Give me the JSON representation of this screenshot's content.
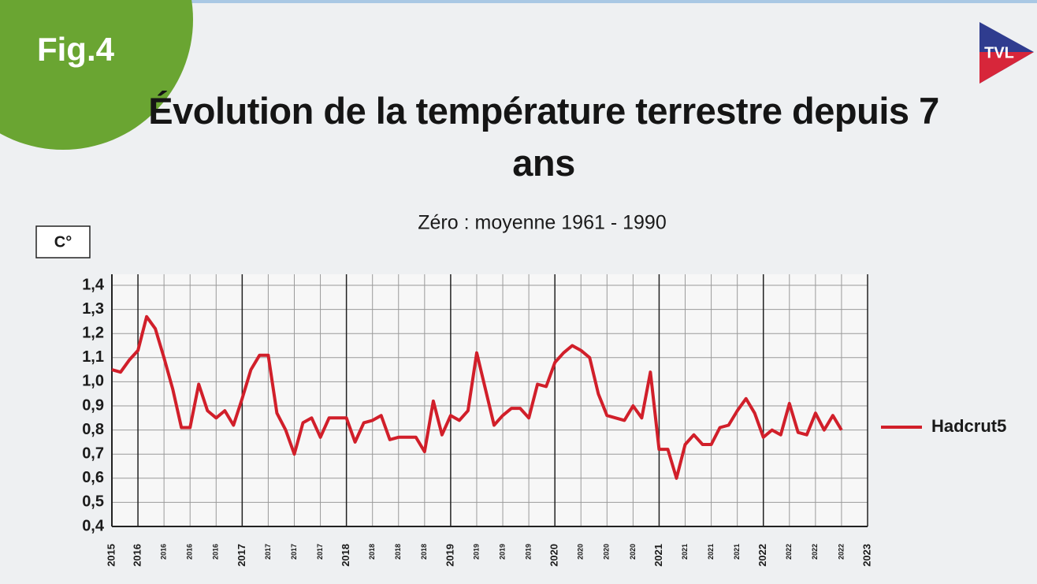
{
  "chart_data": {
    "type": "line",
    "badge": "Fig.4",
    "logo": "TVL",
    "title": "Évolution de la température terrestre depuis 7 ans",
    "subtitle": "Zéro : moyenne 1961 - 1990",
    "y_label": "C°",
    "xlim": [
      0,
      87
    ],
    "xticks": [
      {
        "value": 0,
        "label": "2015"
      },
      {
        "value": 3,
        "label": "2016"
      },
      {
        "value": 6,
        "label": "2016"
      },
      {
        "value": 9,
        "label": "2016"
      },
      {
        "value": 12,
        "label": "2016"
      },
      {
        "value": 15,
        "label": "2017"
      },
      {
        "value": 18,
        "label": "2017"
      },
      {
        "value": 21,
        "label": "2017"
      },
      {
        "value": 24,
        "label": "2017"
      },
      {
        "value": 27,
        "label": "2018"
      },
      {
        "value": 30,
        "label": "2018"
      },
      {
        "value": 33,
        "label": "2018"
      },
      {
        "value": 36,
        "label": "2018"
      },
      {
        "value": 39,
        "label": "2019"
      },
      {
        "value": 42,
        "label": "2019"
      },
      {
        "value": 45,
        "label": "2019"
      },
      {
        "value": 48,
        "label": "2019"
      },
      {
        "value": 51,
        "label": "2020"
      },
      {
        "value": 54,
        "label": "2020"
      },
      {
        "value": 57,
        "label": "2020"
      },
      {
        "value": 60,
        "label": "2020"
      },
      {
        "value": 63,
        "label": "2021"
      },
      {
        "value": 66,
        "label": "2021"
      },
      {
        "value": 69,
        "label": "2021"
      },
      {
        "value": 72,
        "label": "2021"
      },
      {
        "value": 75,
        "label": "2022"
      },
      {
        "value": 78,
        "label": "2022"
      },
      {
        "value": 81,
        "label": "2022"
      },
      {
        "value": 84,
        "label": "2022"
      },
      {
        "value": 87,
        "label": "2023"
      }
    ],
    "ylim": [
      0.4,
      1.4
    ],
    "yticks": [
      {
        "value": 0.4,
        "label": "0,4"
      },
      {
        "value": 0.5,
        "label": "0,5"
      },
      {
        "value": 0.6,
        "label": "0,6"
      },
      {
        "value": 0.7,
        "label": "0,7"
      },
      {
        "value": 0.8,
        "label": "0,8"
      },
      {
        "value": 0.9,
        "label": "0,9"
      },
      {
        "value": 1.0,
        "label": "1,0"
      },
      {
        "value": 1.1,
        "label": "1,1"
      },
      {
        "value": 1.2,
        "label": "1,2"
      },
      {
        "value": 1.3,
        "label": "1,3"
      },
      {
        "value": 1.4,
        "label": "1,4"
      }
    ],
    "grid": true,
    "legend": "right",
    "x": [
      0,
      1,
      2,
      3,
      4,
      5,
      6,
      7,
      8,
      9,
      10,
      11,
      12,
      13,
      14,
      15,
      16,
      17,
      18,
      19,
      20,
      21,
      22,
      23,
      24,
      25,
      26,
      27,
      28,
      29,
      30,
      31,
      32,
      33,
      34,
      35,
      36,
      37,
      38,
      39,
      40,
      41,
      42,
      43,
      44,
      45,
      46,
      47,
      48,
      49,
      50,
      51,
      52,
      53,
      54,
      55,
      56,
      57,
      58,
      59,
      60,
      61,
      62,
      63,
      64,
      65,
      66,
      67,
      68,
      69,
      70,
      71,
      72,
      73,
      74,
      75,
      76,
      77,
      78,
      79,
      80,
      81,
      82,
      83,
      84
    ],
    "series": [
      {
        "name": "Hadcrut5",
        "color": "#d11f2a",
        "values": [
          1.05,
          1.04,
          1.09,
          1.13,
          1.27,
          1.22,
          1.1,
          0.97,
          0.81,
          0.81,
          0.99,
          0.88,
          0.85,
          0.88,
          0.82,
          0.93,
          1.05,
          1.11,
          1.11,
          0.87,
          0.8,
          0.7,
          0.83,
          0.85,
          0.77,
          0.85,
          0.85,
          0.85,
          0.75,
          0.83,
          0.84,
          0.86,
          0.76,
          0.77,
          0.77,
          0.77,
          0.71,
          0.92,
          0.78,
          0.86,
          0.84,
          0.88,
          1.12,
          0.97,
          0.82,
          0.86,
          0.89,
          0.89,
          0.85,
          0.99,
          0.98,
          1.08,
          1.12,
          1.15,
          1.13,
          1.1,
          0.95,
          0.86,
          0.85,
          0.84,
          0.9,
          0.85,
          1.04,
          0.72,
          0.72,
          0.6,
          0.74,
          0.78,
          0.74,
          0.74,
          0.81,
          0.82,
          0.88,
          0.93,
          0.87,
          0.77,
          0.8,
          0.78,
          0.91,
          0.79,
          0.78,
          0.87,
          0.8,
          0.86,
          0.8
        ]
      }
    ]
  }
}
